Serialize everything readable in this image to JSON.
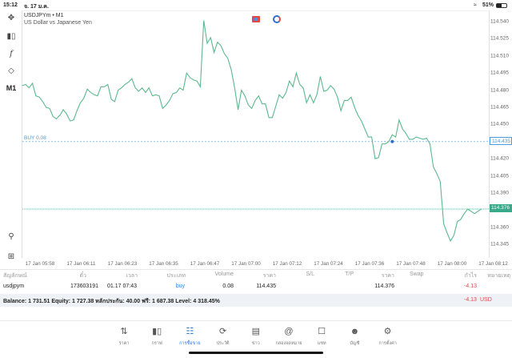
{
  "status_bar": {
    "time": "15:12",
    "date": "จ. 17 ม.ค.",
    "battery": "51%"
  },
  "chart": {
    "symbol_line": "USDJPYm • M1",
    "description": "US Dollar vs Japanese Yen",
    "timeframe": "M1",
    "buy_label": "BUY 0.08",
    "line_color": "#5cb88f",
    "buy_line_color": "#4a9be0",
    "current_price_tag": "114.376",
    "buy_price_tag": "114.435"
  },
  "chart_data": {
    "type": "line",
    "series": [
      {
        "values": [
          114.484,
          114.485,
          114.482,
          114.486,
          114.475,
          114.474,
          114.47,
          114.465,
          114.464,
          114.457,
          114.455,
          114.458,
          114.463,
          114.459,
          114.453,
          114.454,
          114.462,
          114.469,
          114.473,
          114.481,
          114.478,
          114.476,
          114.475,
          114.483,
          114.483,
          114.485,
          114.472,
          114.47,
          114.48,
          114.482,
          114.485,
          114.487,
          114.49,
          114.482,
          114.479,
          114.482,
          114.478,
          114.482,
          114.475,
          114.476,
          114.475,
          114.464,
          114.467,
          114.471,
          114.477,
          114.478,
          114.482,
          114.48,
          114.495,
          114.491,
          114.489,
          114.488,
          114.483,
          114.541,
          114.521,
          114.526,
          114.513,
          114.522,
          114.519,
          114.512,
          114.508,
          114.498,
          114.482,
          114.463,
          114.48,
          114.475,
          114.467,
          114.464,
          114.471,
          114.475,
          114.468,
          114.468,
          114.456,
          114.456,
          114.466,
          114.476,
          114.473,
          114.478,
          114.488,
          114.483,
          114.495,
          114.485,
          114.482,
          114.469,
          114.476,
          114.469,
          114.476,
          114.492,
          114.479,
          114.48,
          114.484,
          114.481,
          114.474,
          114.462,
          114.471,
          114.471,
          114.474,
          114.465,
          114.458,
          114.453,
          114.446,
          114.439,
          114.439,
          114.42,
          114.421,
          114.433,
          114.433,
          114.435,
          114.441,
          114.439,
          114.454,
          114.446,
          114.442,
          114.437,
          114.437,
          114.439,
          114.438,
          114.437,
          114.438,
          114.433,
          114.413,
          114.407,
          114.4,
          114.363,
          114.355,
          114.348,
          114.353,
          114.365,
          114.367,
          114.372,
          114.376,
          114.374,
          114.372,
          114.374,
          114.376
        ]
      }
    ],
    "x_tick_labels": [
      "17 Jan 05:58",
      "17 Jan 06:11",
      "17 Jan 06:23",
      "17 Jan 06:35",
      "17 Jan 06:47",
      "17 Jan 07:00",
      "17 Jan 07:12",
      "17 Jan 07:24",
      "17 Jan 07:36",
      "17 Jan 07:48",
      "17 Jan 08:00",
      "17 Jan 08:12"
    ],
    "y_tick_labels": [
      "114.540",
      "114.525",
      "114.510",
      "114.495",
      "114.480",
      "114.465",
      "114.450",
      "114.435",
      "114.420",
      "114.405",
      "114.390",
      "114.376",
      "114.360",
      "114.345"
    ],
    "ylim": [
      114.345,
      114.54
    ],
    "buy_price": 114.435,
    "buy_index": 108,
    "current_price": 114.376,
    "grid": false
  },
  "trades": {
    "headers": [
      "สัญลักษณ์",
      "ตั๋ว",
      "เวลา",
      "ประเภท",
      "Volume",
      "ราคา",
      "S/L",
      "T/P",
      "ราคา",
      "Swap",
      "กำไร",
      "หมายเหตุ"
    ],
    "row": {
      "symbol": "usdjpym",
      "ticket": "173603191",
      "time": "01.17 07:43",
      "type": "buy",
      "volume": "0.08",
      "open_price": "114.435",
      "sl": "",
      "tp": "",
      "price": "114.376",
      "swap": "",
      "profit": "-4.13",
      "comment": ""
    },
    "balance_text": "Balance: 1 731.51 Equity: 1 727.38 หลักประกัน: 40.00 ฟรี: 1 687.38 Level: 4 318.45%",
    "total_profit": "-4.13",
    "currency": "USD"
  },
  "nav": [
    {
      "label": "ราคา",
      "icon": "quotes-icon"
    },
    {
      "label": "กราฟ",
      "icon": "chart-candles-icon"
    },
    {
      "label": "การซื้อขาย",
      "icon": "trade-icon",
      "active": true
    },
    {
      "label": "ประวัติ",
      "icon": "history-icon"
    },
    {
      "label": "ข่าว",
      "icon": "news-icon"
    },
    {
      "label": "กล่องจดหมาย",
      "icon": "mailbox-icon"
    },
    {
      "label": "แชท",
      "icon": "chat-icon"
    },
    {
      "label": "บัญชี",
      "icon": "account-icon"
    },
    {
      "label": "การตั้งค่า",
      "icon": "settings-icon"
    }
  ]
}
